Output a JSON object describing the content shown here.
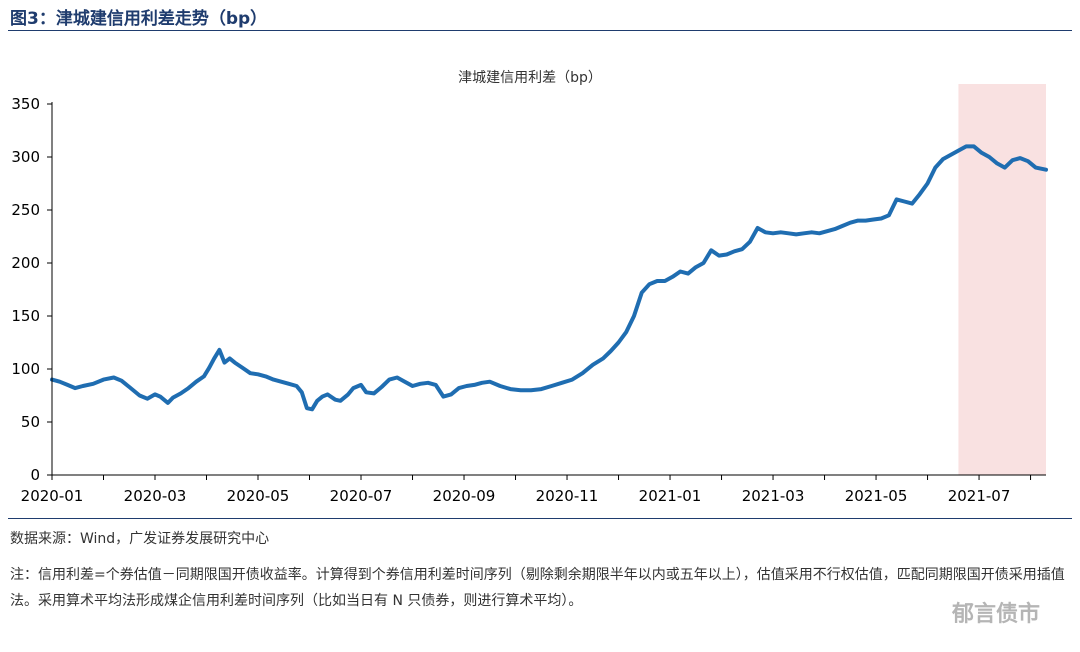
{
  "figure_title": "图3：津城建信用利差走势（bp）",
  "source": "数据来源：Wind，广发证券发展研究中心",
  "note": "注：信用利差=个券估值－同期限国开债收益率。计算得到个券信用利差时间序列（剔除剩余期限半年以内或五年以上），估值采用不行权估值，匹配同期限国开债采用插值法。采用算术平均法形成煤企信用利差时间序列（比如当日有 N 只债券，则进行算术平均）。",
  "watermark": "郁言债市",
  "colors": {
    "line": "#1f6db1",
    "highlight": "#f9e1e1",
    "axis": "#000000",
    "title": "#1f3c6e"
  },
  "chart_data": {
    "type": "line",
    "title": "津城建信用利差（bp）",
    "xlabel": "",
    "ylabel": "",
    "ylim": [
      0,
      350
    ],
    "yticks": [
      0,
      50,
      100,
      150,
      200,
      250,
      300,
      350
    ],
    "xlim": [
      0,
      19.3
    ],
    "xticks": [
      {
        "pos": 0,
        "label": "2020-01"
      },
      {
        "pos": 2,
        "label": "2020-03"
      },
      {
        "pos": 4,
        "label": "2020-05"
      },
      {
        "pos": 6,
        "label": "2020-07"
      },
      {
        "pos": 8,
        "label": "2020-09"
      },
      {
        "pos": 10,
        "label": "2020-11"
      },
      {
        "pos": 12,
        "label": "2021-01"
      },
      {
        "pos": 14,
        "label": "2021-03"
      },
      {
        "pos": 16,
        "label": "2021-05"
      },
      {
        "pos": 18,
        "label": "2021-07"
      }
    ],
    "highlight_range": [
      17.6,
      19.3
    ],
    "series": [
      {
        "name": "津城建信用利差",
        "x": [
          0,
          0.15,
          0.3,
          0.45,
          0.6,
          0.8,
          1.0,
          1.2,
          1.35,
          1.5,
          1.7,
          1.85,
          2.0,
          2.1,
          2.25,
          2.35,
          2.5,
          2.65,
          2.8,
          2.95,
          3.05,
          3.15,
          3.25,
          3.35,
          3.45,
          3.55,
          3.7,
          3.85,
          4.0,
          4.15,
          4.3,
          4.45,
          4.6,
          4.75,
          4.85,
          4.95,
          5.05,
          5.15,
          5.25,
          5.35,
          5.5,
          5.6,
          5.75,
          5.85,
          6.0,
          6.1,
          6.25,
          6.4,
          6.55,
          6.7,
          6.85,
          7.0,
          7.15,
          7.3,
          7.45,
          7.6,
          7.75,
          7.9,
          8.05,
          8.2,
          8.35,
          8.5,
          8.7,
          8.9,
          9.1,
          9.3,
          9.5,
          9.7,
          9.9,
          10.1,
          10.3,
          10.5,
          10.7,
          10.85,
          11.0,
          11.15,
          11.3,
          11.45,
          11.6,
          11.75,
          11.9,
          12.05,
          12.2,
          12.35,
          12.5,
          12.65,
          12.8,
          12.95,
          13.1,
          13.25,
          13.4,
          13.55,
          13.7,
          13.85,
          14.0,
          14.15,
          14.3,
          14.45,
          14.6,
          14.75,
          14.9,
          15.05,
          15.2,
          15.35,
          15.5,
          15.65,
          15.8,
          15.95,
          16.1,
          16.25,
          16.4,
          16.55,
          16.7,
          16.85,
          17.0,
          17.15,
          17.3,
          17.45,
          17.6,
          17.75,
          17.9,
          18.05,
          18.2,
          18.35,
          18.5,
          18.65,
          18.8,
          18.95,
          19.1,
          19.3
        ],
        "values": [
          90,
          88,
          85,
          82,
          84,
          86,
          90,
          92,
          89,
          83,
          75,
          72,
          76,
          74,
          68,
          73,
          77,
          82,
          88,
          93,
          101,
          110,
          118,
          106,
          110,
          106,
          101,
          96,
          95,
          93,
          90,
          88,
          86,
          84,
          78,
          63,
          62,
          70,
          74,
          76,
          71,
          70,
          76,
          82,
          85,
          78,
          77,
          83,
          90,
          92,
          88,
          84,
          86,
          87,
          85,
          74,
          76,
          82,
          84,
          85,
          87,
          88,
          84,
          81,
          80,
          80,
          81,
          84,
          87,
          90,
          96,
          104,
          110,
          117,
          125,
          135,
          150,
          172,
          180,
          183,
          183,
          187,
          192,
          190,
          196,
          200,
          212,
          207,
          208,
          211,
          213,
          220,
          233,
          229,
          228,
          229,
          228,
          227,
          228,
          229,
          228,
          230,
          232,
          235,
          238,
          240,
          240,
          241,
          242,
          245,
          260,
          258,
          256,
          265,
          275,
          290,
          298,
          302,
          306,
          310,
          310,
          304,
          300,
          294,
          290,
          297,
          299,
          296,
          290,
          288
        ]
      }
    ]
  }
}
